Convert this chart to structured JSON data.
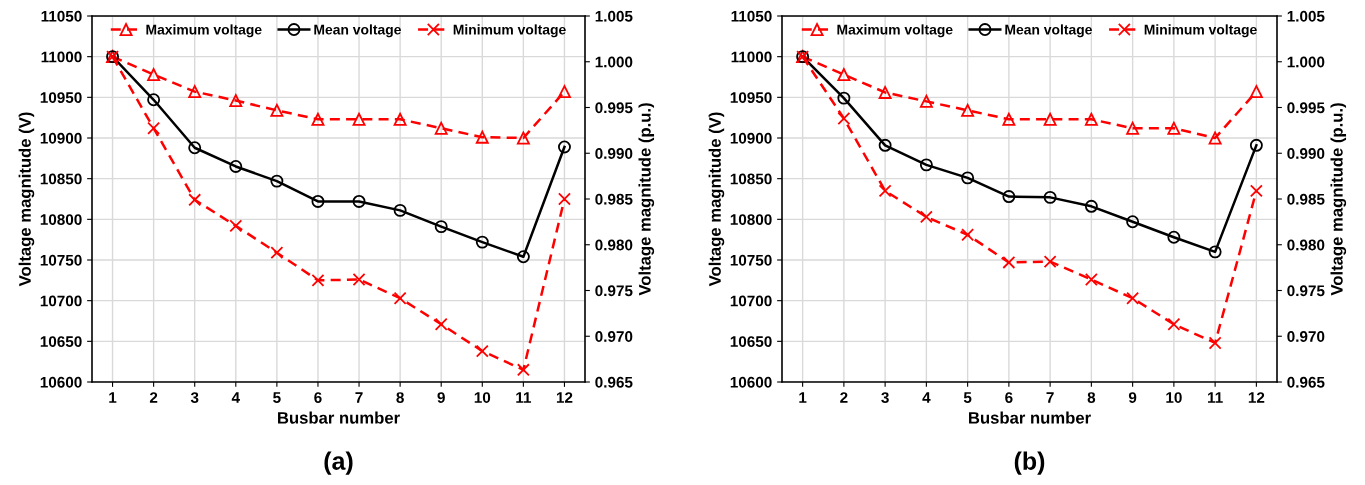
{
  "chart_data": [
    {
      "type": "line",
      "title": "(a)",
      "xlabel": "Busbar number",
      "ylabel": "Voltage magnitude (V)",
      "y2label": "Voltage magnitude (p.u.)",
      "categories": [
        "1",
        "2",
        "3",
        "4",
        "5",
        "6",
        "7",
        "8",
        "9",
        "10",
        "11",
        "12"
      ],
      "ylim": [
        10600,
        11050
      ],
      "yticks": [
        10600,
        10650,
        10700,
        10750,
        10800,
        10850,
        10900,
        10950,
        11000,
        11050
      ],
      "y2lim": [
        0.965,
        1.005
      ],
      "y2ticks": [
        {
          "value": 0.965,
          "label": "0.965"
        },
        {
          "value": 0.97,
          "label": "0.970"
        },
        {
          "value": 0.975,
          "label": "0.975"
        },
        {
          "value": 0.98,
          "label": "0.980"
        },
        {
          "value": 0.985,
          "label": "0.985"
        },
        {
          "value": 0.99,
          "label": "0.990"
        },
        {
          "value": 0.995,
          "label": "0.995"
        },
        {
          "value": 1.0,
          "label": "1.000"
        },
        {
          "value": 1.005,
          "label": "1.005"
        }
      ],
      "grid": true,
      "legend": "top",
      "series": [
        {
          "name": "Maximum voltage",
          "color": "#ff0000",
          "marker": "triangle",
          "line_style": "dashed",
          "values": [
            11000,
            10978,
            10957,
            10946,
            10934,
            10923,
            10923,
            10923,
            10912,
            10901,
            10900,
            10957
          ]
        },
        {
          "name": "Mean voltage",
          "color": "#000000",
          "marker": "circle",
          "line_style": "solid",
          "values": [
            11000,
            10947,
            10888,
            10865,
            10847,
            10822,
            10822,
            10811,
            10791,
            10772,
            10754,
            10889
          ]
        },
        {
          "name": "Minimum voltage",
          "color": "#ff0000",
          "marker": "cross",
          "line_style": "dashed",
          "values": [
            11000,
            10912,
            10824,
            10792,
            10759,
            10725,
            10726,
            10703,
            10671,
            10638,
            10615,
            10825
          ]
        }
      ]
    },
    {
      "type": "line",
      "title": "(b)",
      "xlabel": "Busbar number",
      "ylabel": "Voltage magnitude (V)",
      "y2label": "Voltage magnitude (p.u.)",
      "categories": [
        "1",
        "2",
        "3",
        "4",
        "5",
        "6",
        "7",
        "8",
        "9",
        "10",
        "11",
        "12"
      ],
      "ylim": [
        10600,
        11050
      ],
      "yticks": [
        10600,
        10650,
        10700,
        10750,
        10800,
        10850,
        10900,
        10950,
        11000,
        11050
      ],
      "y2lim": [
        0.965,
        1.005
      ],
      "y2ticks": [
        {
          "value": 0.965,
          "label": "0.965"
        },
        {
          "value": 0.97,
          "label": "0.970"
        },
        {
          "value": 0.975,
          "label": "0.975"
        },
        {
          "value": 0.98,
          "label": "0.980"
        },
        {
          "value": 0.985,
          "label": "0.985"
        },
        {
          "value": 0.99,
          "label": "0.990"
        },
        {
          "value": 0.995,
          "label": "0.995"
        },
        {
          "value": 1.0,
          "label": "1.000"
        },
        {
          "value": 1.005,
          "label": "1.005"
        }
      ],
      "grid": true,
      "legend": "top",
      "series": [
        {
          "name": "Maximum voltage",
          "color": "#ff0000",
          "marker": "triangle",
          "line_style": "dashed",
          "values": [
            11000,
            10978,
            10956,
            10945,
            10934,
            10923,
            10923,
            10923,
            10912,
            10912,
            10900,
            10957
          ]
        },
        {
          "name": "Mean voltage",
          "color": "#000000",
          "marker": "circle",
          "line_style": "solid",
          "values": [
            11000,
            10949,
            10891,
            10867,
            10851,
            10828,
            10827,
            10816,
            10797,
            10778,
            10760,
            10891
          ]
        },
        {
          "name": "Minimum voltage",
          "color": "#ff0000",
          "marker": "cross",
          "line_style": "dashed",
          "values": [
            11000,
            10924,
            10835,
            10803,
            10781,
            10747,
            10748,
            10726,
            10703,
            10671,
            10648,
            10835
          ]
        }
      ]
    }
  ]
}
